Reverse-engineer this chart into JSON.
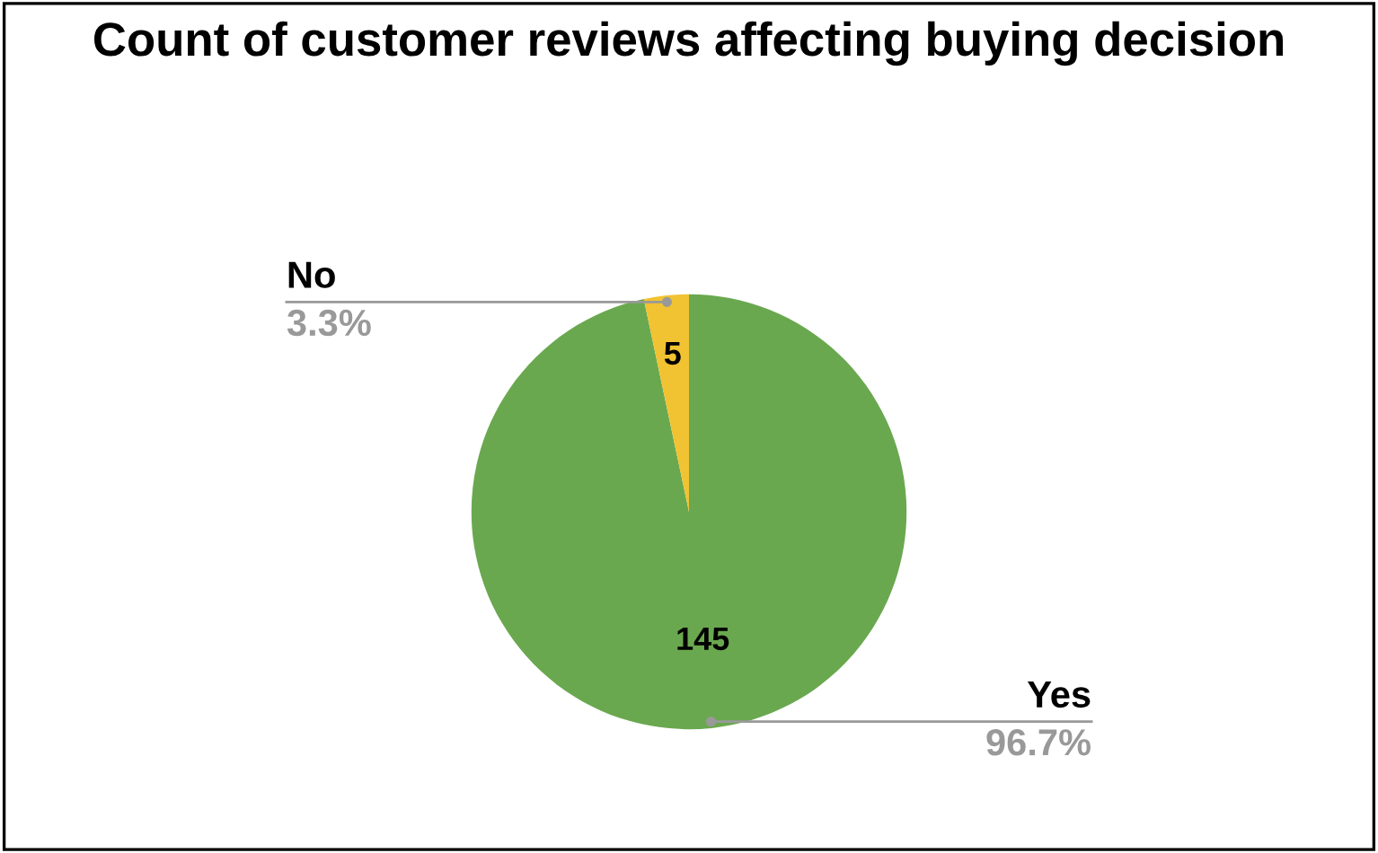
{
  "chart_data": {
    "type": "pie",
    "title": "Count of customer reviews affecting buying decision",
    "categories": [
      "Yes",
      "No"
    ],
    "values": [
      145,
      5
    ],
    "colors": [
      "#6aa84f",
      "#f1c232"
    ],
    "data_labels": true,
    "annotations": [
      "96.7%",
      "3.3%"
    ]
  }
}
